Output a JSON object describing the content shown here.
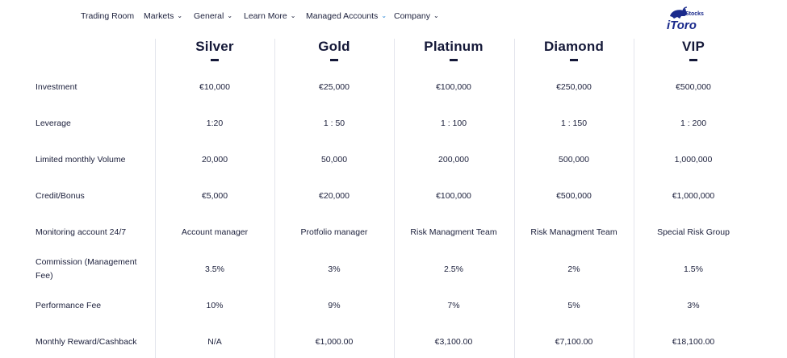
{
  "nav": {
    "items": [
      {
        "label": "Trading Room",
        "dropdown": false
      },
      {
        "label": "Markets",
        "dropdown": true
      },
      {
        "label": "General",
        "dropdown": true
      },
      {
        "label": "Learn More",
        "dropdown": true
      },
      {
        "label": "Managed Accounts",
        "dropdown": true,
        "active": true
      },
      {
        "label": "Company",
        "dropdown": true
      }
    ],
    "logo": {
      "icon": "bull-icon",
      "text": "iToro",
      "sub": "Stocks"
    }
  },
  "colors": {
    "text": "#1b1f3b",
    "heading": "#141838",
    "accent": "#2a86d6",
    "grid": "#e3e5ec",
    "logo": "#1a2a8c"
  },
  "plans": [
    "Silver",
    "Gold",
    "Platinum",
    "Diamond",
    "VIP"
  ],
  "rows": [
    {
      "label": "Investment",
      "values": [
        "€10,000",
        "€25,000",
        "€100,000",
        "€250,000",
        "€500,000"
      ]
    },
    {
      "label": "Leverage",
      "values": [
        "1:20",
        "1 : 50",
        "1 : 100",
        "1 : 150",
        "1 : 200"
      ]
    },
    {
      "label": "Limited monthly Volume",
      "values": [
        "20,000",
        "50,000",
        "200,000",
        "500,000",
        "1,000,000"
      ]
    },
    {
      "label": "Credit/Bonus",
      "values": [
        "€5,000",
        "€20,000",
        "€100,000",
        "€500,000",
        "€1,000,000"
      ]
    },
    {
      "label": "Monitoring account 24/7",
      "values": [
        "Account manager",
        "Protfolio manager",
        "Risk Managment Team",
        "Risk Managment Team",
        "Special Risk Group"
      ]
    },
    {
      "label": "Commission (Management Fee)",
      "values": [
        "3.5%",
        "3%",
        "2.5%",
        "2%",
        "1.5%"
      ]
    },
    {
      "label": "Performance Fee",
      "values": [
        "10%",
        "9%",
        "7%",
        "5%",
        "3%"
      ]
    },
    {
      "label": "Monthly Reward/Cashback",
      "values": [
        "N/A",
        "€1,000.00",
        "€3,100.00",
        "€7,100.00",
        "€18,100.00"
      ]
    }
  ]
}
